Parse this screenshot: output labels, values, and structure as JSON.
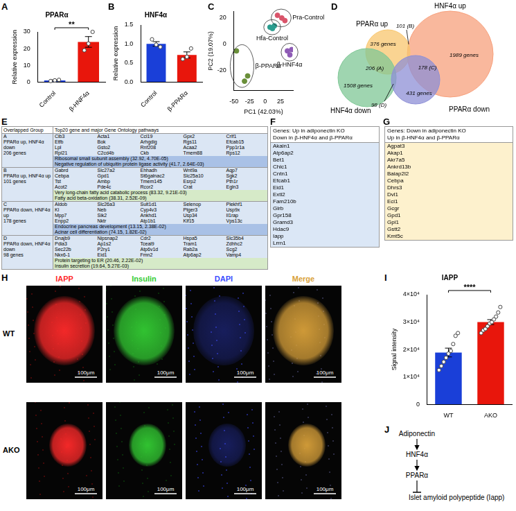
{
  "chart_data": [
    {
      "panel": "A",
      "type": "bar",
      "title": "PPARα",
      "y_label": "Relative expression",
      "categories": [
        "Control",
        "β-HNF4α"
      ],
      "values": [
        1,
        24
      ],
      "errors": [
        0.3,
        3.2
      ],
      "points": [
        [
          0.6,
          1.0,
          1.3
        ],
        [
          19,
          23,
          30
        ]
      ],
      "colors": [
        "#1a3fd8",
        "#e8160c"
      ],
      "ylim": [
        0,
        30
      ],
      "yticks": [
        0,
        10,
        20,
        30
      ],
      "annotation": "**"
    },
    {
      "panel": "B",
      "type": "bar",
      "title": "HNF4α",
      "y_label": "Relative expression",
      "categories": [
        "Control",
        "β-PPARα"
      ],
      "values": [
        1.0,
        0.71
      ],
      "errors": [
        0.06,
        0.08
      ],
      "points": [
        [
          1.12,
          0.98,
          0.92
        ],
        [
          0.6,
          0.66,
          0.88
        ]
      ],
      "colors": [
        "#1a3fd8",
        "#e8160c"
      ],
      "ylim": [
        0,
        1.5
      ],
      "yticks": [
        {
          "value": 0,
          "label": "0.0"
        },
        0.5,
        {
          "value": 1,
          "label": "1.0"
        },
        1.5
      ]
    },
    {
      "panel": "C",
      "type": "scatter",
      "x_label": "PC1 (42.03%)",
      "y_label": "PC2 (19.07%)",
      "series": [
        {
          "name": "Pra-Control",
          "color": "#d9546a",
          "x": [
            20,
            27,
            32
          ],
          "y": [
            22,
            20,
            18
          ]
        },
        {
          "name": "Hfa-Control",
          "color": "#2a9d8f",
          "x": [
            8,
            12,
            15
          ],
          "y": [
            13,
            12,
            14
          ]
        },
        {
          "name": "β-PPARα",
          "color": "#6a8f3a",
          "x": [
            -46,
            -33,
            -28
          ],
          "y": [
            -5,
            -28,
            -24
          ]
        },
        {
          "name": "β-HNF4α",
          "color": "#8e5bb5",
          "x": [
            36,
            40,
            43
          ],
          "y": [
            -5,
            -8,
            -4
          ]
        }
      ],
      "xlim": [
        -50,
        45
      ],
      "xticks": [
        -50,
        -25,
        0,
        25
      ],
      "ylim": [
        -35,
        25
      ],
      "yticks": [
        -20,
        0,
        20
      ]
    },
    {
      "panel": "I",
      "type": "bar",
      "title": "IAPP",
      "y_label": "Signal intensity",
      "categories": [
        "WT",
        "AKO"
      ],
      "values": [
        18900,
        30000
      ],
      "errors": [
        1600,
        900
      ],
      "points": [
        [
          12500,
          14000,
          15500,
          17000,
          18500,
          19500,
          22000,
          25000,
          26000
        ],
        [
          26000,
          27000,
          27500,
          28500,
          29500,
          30000,
          31000,
          32000,
          33500,
          35500
        ]
      ],
      "colors": [
        "#1a3fd8",
        "#e8160c"
      ],
      "ylim": [
        0,
        40000
      ],
      "yticks": [
        0,
        {
          "value": 10000,
          "label": "1×10⁴"
        },
        {
          "value": 20000,
          "label": "2×10⁴"
        },
        {
          "value": 30000,
          "label": "3×10⁴"
        },
        {
          "value": 40000,
          "label": "4×10⁴"
        }
      ],
      "annotation": "****"
    }
  ],
  "venn": {
    "letter": "D",
    "sets": [
      {
        "name": "HNF4α up",
        "color": "#f7a07c"
      },
      {
        "name": "PPARα up",
        "color": "#f8c66d"
      },
      {
        "name": "HNF4α down",
        "color": "#7fc796"
      },
      {
        "name": "PPARα down",
        "color": "#8d8fd6"
      }
    ],
    "regions": [
      "1989 genes",
      "376 genes",
      "1508 genes",
      "431 genes",
      "206 (A)",
      "101 (B)",
      "178 (C)",
      "98 (D)"
    ]
  },
  "table_e": {
    "letter": "E",
    "header": [
      "Overlapped Group",
      "Top20 gene and major Gene Ontology pathways"
    ],
    "rows": [
      {
        "group": "A",
        "description": "PPARα up, HNF4α down",
        "count": "206 genes",
        "genes": [
          "Cib3",
          "Acta1",
          "Ccl19",
          "Gpx2",
          "Crlf1",
          "Etfb",
          "Bok",
          "Arhgdig",
          "Rgs11",
          "Efcab15",
          "Lpl",
          "Gsto2",
          "Rnf208",
          "Acaa2",
          "Ppp1r1a",
          "Rpl21",
          "C2cd4b",
          "Ckb",
          "Tmem88",
          "Rps12"
        ],
        "pathways": [
          "Ribosomal small subunit assembly (32.92, 4.70E-05)",
          "Negative regulation of ubiquitin protein ligase activity (41.7, 2.64E-03)"
        ],
        "color": "#a9c1e6"
      },
      {
        "group": "B",
        "description": "PPARα up, HNF4α up",
        "count": "101 genes",
        "genes": [
          "Gabrd",
          "Slc27a2",
          "Ehhadh",
          "Wnt9a",
          "Aqp7",
          "Cebpa",
          "Gpd1",
          "St6galnac2",
          "Slc25a10",
          "Sgk2",
          "Tst",
          "Ambp",
          "Tmem145",
          "Esrp2",
          "Pth1r",
          "Acot2",
          "Pde4c",
          "Rcor2",
          "Crat",
          "Egln3"
        ],
        "pathways": [
          "Very long-chain fatty acid catabolic process (83.32, 9.21E-03)",
          "Fatty acid beta-oxidation (38.31, 2.52E-09)"
        ],
        "color": "#d6eac8"
      },
      {
        "group": "C",
        "description": "PPARα down, HNF4α up",
        "count": "178 genes",
        "genes": [
          "Aldob",
          "Slc26a3",
          "Sult1d1",
          "Selenop",
          "Plekhf1",
          "Kl",
          "Neb",
          "Cyp4v3",
          "Ptger3",
          "Usp9x",
          "Mpp7",
          "Sik2",
          "Ankhd1",
          "Usp34",
          "Il1rap",
          "Enpp2",
          "Nktr",
          "Atp1b1",
          "Klf15",
          "Vps13c"
        ],
        "pathways": [
          "Endocrine pancreas development (13.15, 2.38E-02)",
          "Acinar cell differentiation (74.15, 1.82E-02)"
        ],
        "color": "#a9c1e6"
      },
      {
        "group": "D",
        "description": "PPARα down, HNF4α down",
        "count": "98 genes",
        "genes": [
          "Dnajb9",
          "Nipsnap2",
          "Cdr2",
          "Hspa5",
          "Slc35b4",
          "Pdia3",
          "Ap1s2",
          "Tceal9",
          "Tram1",
          "Zdhhc2",
          "Sec22b",
          "P2ry1",
          "Atp6v1d",
          "Rab2a",
          "Scg2",
          "Nkx6-1",
          "Eid1",
          "Fmn2",
          "Atp6ap2",
          "Vamp4"
        ],
        "pathways": [
          "Protein targeting to ER (20.46, 2.22E-02)",
          "Insulin secretion (19.64, 5.27E-03)"
        ],
        "color": "#d6eac8"
      }
    ]
  },
  "table_f": {
    "letter": "F",
    "header": [
      "Genes: Up in adiponectin KO",
      "Down in β-HNF4α and β-PPARα"
    ],
    "genes": [
      "Akain1",
      "Atp6ap2",
      "Bet1",
      "Chic1",
      "Cntn1",
      "Efcab1",
      "Eid1",
      "Extl2",
      "Fam210b",
      "Glrb",
      "Gpr158",
      "Gramd3",
      "Hdac9",
      "Iapp",
      "Lrrn1"
    ],
    "color": "#dbe7f6"
  },
  "table_g": {
    "letter": "G",
    "header": [
      "Genes: Down in adiponectin KO",
      "Up in β-HNF4α and β-PPARα"
    ],
    "genes": [
      "Agpat3",
      "Akap1",
      "Akr7a5",
      "Ankrd13b",
      "Baiap2l2",
      "Cebpa",
      "Dhrs3",
      "Dvl1",
      "Eci1",
      "Gcgr",
      "Gpd1",
      "Gpi1",
      "Gstt2",
      "Kmt5c"
    ],
    "color": "#fdf1cd"
  },
  "images_h": {
    "letter": "H",
    "columns": [
      {
        "label": "IAPP",
        "color": "#ff2a2a"
      },
      {
        "label": "Insulin",
        "color": "#33cc33"
      },
      {
        "label": "DAPI",
        "color": "#3a4cff"
      },
      {
        "label": "Merge",
        "color": "#d9a13a"
      }
    ],
    "rows": [
      "WT",
      "AKO"
    ],
    "scale_bar": "100μm"
  },
  "diagram_j": {
    "letter": "J",
    "nodes": [
      "Adiponectin",
      "HNF4α",
      "PPARα",
      "Islet amyloid polypeptide (Iapp)"
    ]
  }
}
